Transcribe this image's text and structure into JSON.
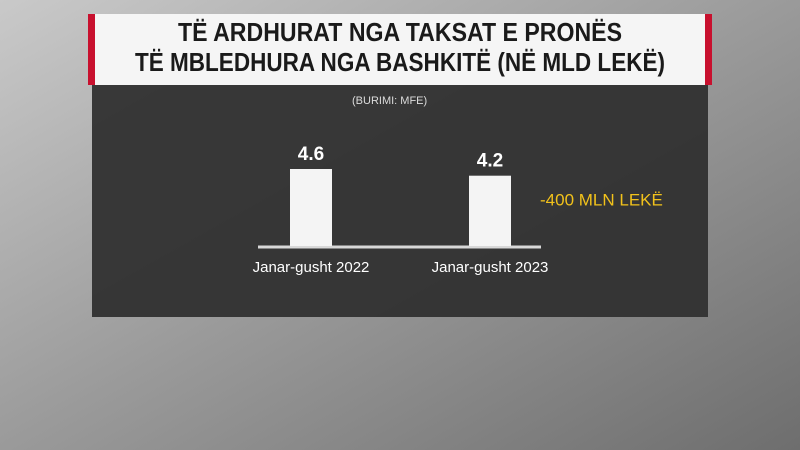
{
  "chart_data": {
    "type": "bar",
    "title": [
      "TË ARDHURAT NGA TAKSAT E PRONËS",
      "TË MBLEDHURA NGA BASHKITË (NË MLD LEKË)"
    ],
    "source": "(BURIMI: MFE)",
    "categories": [
      "Janar-gusht 2022",
      "Janar-gusht 2023"
    ],
    "values": [
      4.6,
      4.2
    ],
    "color": "#f4f4f4",
    "annotation": "-400 MLN LEKË"
  }
}
